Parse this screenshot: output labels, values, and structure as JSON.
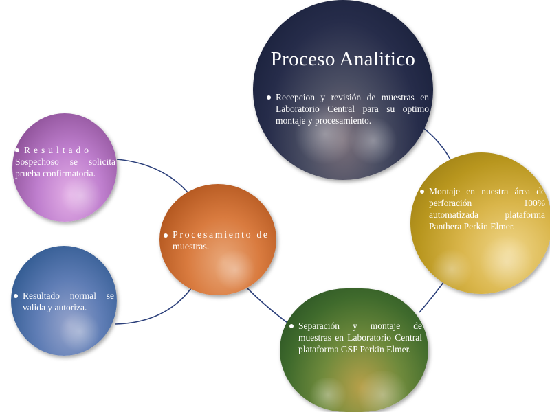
{
  "nodes": {
    "analitico": {
      "title": "Proceso Analitico",
      "text": "Recepcion y revisión de muestras en Laboratorio Central para su optimo montaje y procesamiento."
    },
    "montaje": {
      "text": "Montaje  en nuestra área de perforación 100% automatizada plataforma Panthera Perkin Elmer."
    },
    "separacion": {
      "text": "Separación y montaje de muestras en Laboratorio Central plataforma GSP Perkin Elmer."
    },
    "procesamiento": {
      "text_line1": "Procesamiento de",
      "text_line2": "muestras."
    },
    "sospechoso": {
      "text_line1": "Resultado",
      "text_line2": "Sospechoso se solicita prueba confirmatoria."
    },
    "normal": {
      "text": "Resultado normal se valida y autoriza."
    }
  },
  "colors": {
    "connector": "#2b3f7a",
    "analitico": "#1b2441",
    "montaje": "#c9a832",
    "separacion": "#355e2a",
    "procesamiento": "#cf6f33",
    "sospechoso": "#a467b3",
    "normal": "#345c93"
  }
}
